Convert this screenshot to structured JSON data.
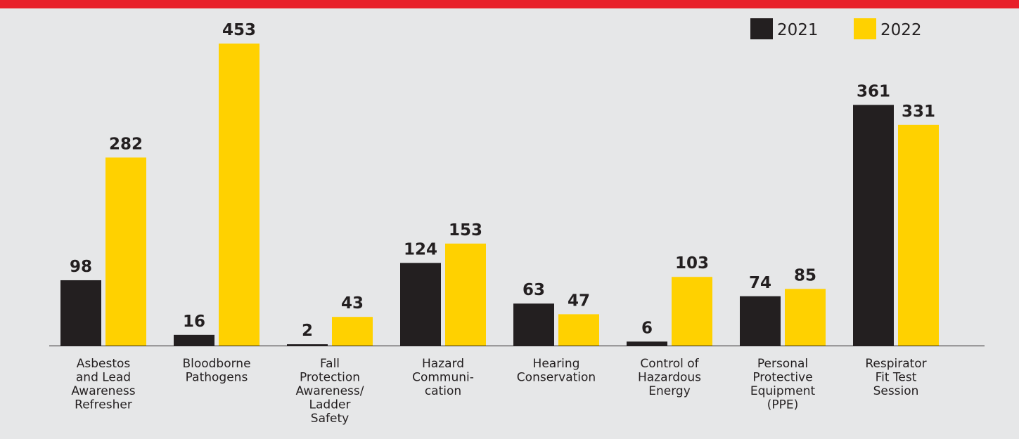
{
  "chart_data": {
    "type": "bar",
    "categories": [
      [
        "Asbestos",
        "and Lead",
        "Awareness",
        "Refresher"
      ],
      [
        "Bloodborne",
        "Pathogens"
      ],
      [
        "Fall",
        "Protection",
        "Awareness/",
        "Ladder",
        "Safety"
      ],
      [
        "Hazard",
        "Communi-",
        "cation"
      ],
      [
        "Hearing",
        "Conservation"
      ],
      [
        "Control of",
        "Hazardous",
        "Energy"
      ],
      [
        "Personal",
        "Protective",
        "Equipment",
        "(PPE)"
      ],
      [
        "Respirator",
        "Fit Test",
        "Session"
      ]
    ],
    "series": [
      {
        "name": "2021",
        "color": "#231f20",
        "values": [
          98,
          16,
          2,
          124,
          63,
          6,
          74,
          361
        ]
      },
      {
        "name": "2022",
        "color": "#ffd100",
        "values": [
          282,
          453,
          43,
          153,
          47,
          103,
          85,
          331
        ]
      }
    ],
    "legend": "top-right"
  }
}
